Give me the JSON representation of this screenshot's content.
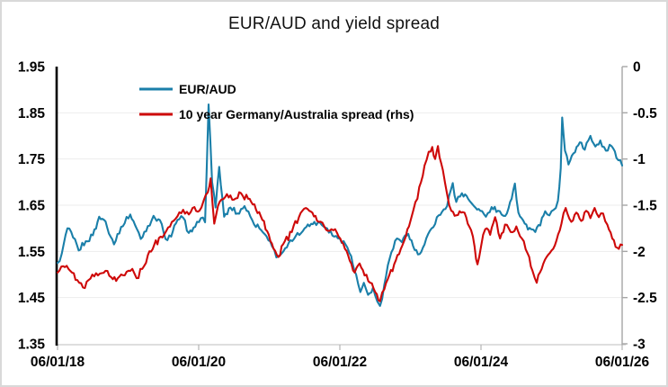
{
  "title": "EUR/AUD and yield spread",
  "legend": [
    {
      "label": "EUR/AUD",
      "color": "#1a7fa9",
      "series": "eur-aud"
    },
    {
      "label": "10 year Germany/Australia spread (rhs)",
      "color": "#ce0909",
      "series": "spread"
    }
  ],
  "colors": {
    "left_spine": "#000000",
    "right_spine": "#a6a6a6",
    "bottom_spine": "#c9c9c9",
    "tick": "#b3b3b3",
    "gridline": "#ededed",
    "frame_border": "#d9d9d9",
    "title_text": "#111111"
  },
  "chart_data": {
    "type": "line",
    "title": "EUR/AUD and yield spread",
    "grid": "horizontal",
    "legend_position": "inside-top-left",
    "x_axis": {
      "tick_labels": [
        "06/01/18",
        "06/01/20",
        "06/01/22",
        "06/01/24",
        "06/01/26"
      ],
      "tick_positions_years": [
        0,
        2,
        4,
        6,
        8
      ],
      "range_years": [
        0,
        8
      ]
    },
    "left_axis": {
      "label_for": "EUR/AUD",
      "ticks": [
        1.95,
        1.85,
        1.75,
        1.65,
        1.55,
        1.45,
        1.35
      ],
      "min": 1.35,
      "max": 1.95
    },
    "right_axis": {
      "label_for": "10 year Germany/Australia spread",
      "ticks": [
        0,
        -0.5,
        -1,
        -1.5,
        -2,
        -2.5,
        -3
      ],
      "min": -3,
      "max": 0
    },
    "series": [
      {
        "name": "EUR/AUD",
        "axis": "left",
        "color": "#1a7fa9",
        "line_width": 2.1,
        "noise_amplitude": 0.0075,
        "points": [
          [
            0.0,
            1.525
          ],
          [
            0.06,
            1.545
          ],
          [
            0.14,
            1.6
          ],
          [
            0.22,
            1.58
          ],
          [
            0.3,
            1.552
          ],
          [
            0.4,
            1.572
          ],
          [
            0.5,
            1.585
          ],
          [
            0.59,
            1.625
          ],
          [
            0.68,
            1.615
          ],
          [
            0.8,
            1.565
          ],
          [
            0.9,
            1.603
          ],
          [
            1.03,
            1.63
          ],
          [
            1.12,
            1.6
          ],
          [
            1.18,
            1.577
          ],
          [
            1.28,
            1.605
          ],
          [
            1.36,
            1.627
          ],
          [
            1.45,
            1.618
          ],
          [
            1.53,
            1.577
          ],
          [
            1.61,
            1.582
          ],
          [
            1.7,
            1.618
          ],
          [
            1.78,
            1.623
          ],
          [
            1.86,
            1.59
          ],
          [
            1.95,
            1.603
          ],
          [
            2.03,
            1.622
          ],
          [
            2.09,
            1.613
          ],
          [
            2.14,
            1.868
          ],
          [
            2.19,
            1.7
          ],
          [
            2.24,
            1.645
          ],
          [
            2.29,
            1.733
          ],
          [
            2.36,
            1.625
          ],
          [
            2.45,
            1.645
          ],
          [
            2.55,
            1.632
          ],
          [
            2.65,
            1.648
          ],
          [
            2.76,
            1.617
          ],
          [
            2.86,
            1.6
          ],
          [
            2.96,
            1.583
          ],
          [
            3.04,
            1.561
          ],
          [
            3.1,
            1.537
          ],
          [
            3.2,
            1.55
          ],
          [
            3.35,
            1.577
          ],
          [
            3.5,
            1.6
          ],
          [
            3.64,
            1.614
          ],
          [
            3.72,
            1.612
          ],
          [
            3.82,
            1.6
          ],
          [
            3.92,
            1.582
          ],
          [
            4.0,
            1.578
          ],
          [
            4.08,
            1.565
          ],
          [
            4.16,
            1.54
          ],
          [
            4.23,
            1.5
          ],
          [
            4.29,
            1.462
          ],
          [
            4.34,
            1.482
          ],
          [
            4.4,
            1.456
          ],
          [
            4.47,
            1.472
          ],
          [
            4.53,
            1.442
          ],
          [
            4.57,
            1.432
          ],
          [
            4.63,
            1.478
          ],
          [
            4.68,
            1.52
          ],
          [
            4.73,
            1.548
          ],
          [
            4.81,
            1.578
          ],
          [
            4.88,
            1.57
          ],
          [
            4.97,
            1.588
          ],
          [
            5.06,
            1.553
          ],
          [
            5.13,
            1.544
          ],
          [
            5.2,
            1.565
          ],
          [
            5.3,
            1.6
          ],
          [
            5.4,
            1.628
          ],
          [
            5.52,
            1.648
          ],
          [
            5.6,
            1.698
          ],
          [
            5.65,
            1.657
          ],
          [
            5.73,
            1.676
          ],
          [
            5.82,
            1.663
          ],
          [
            5.9,
            1.648
          ],
          [
            5.99,
            1.638
          ],
          [
            6.07,
            1.625
          ],
          [
            6.15,
            1.646
          ],
          [
            6.24,
            1.638
          ],
          [
            6.32,
            1.627
          ],
          [
            6.39,
            1.643
          ],
          [
            6.48,
            1.697
          ],
          [
            6.53,
            1.634
          ],
          [
            6.62,
            1.61
          ],
          [
            6.71,
            1.598
          ],
          [
            6.77,
            1.592
          ],
          [
            6.84,
            1.606
          ],
          [
            6.91,
            1.637
          ],
          [
            6.97,
            1.628
          ],
          [
            7.03,
            1.64
          ],
          [
            7.09,
            1.66
          ],
          [
            7.13,
            1.73
          ],
          [
            7.15,
            1.84
          ],
          [
            7.19,
            1.768
          ],
          [
            7.24,
            1.738
          ],
          [
            7.31,
            1.762
          ],
          [
            7.4,
            1.786
          ],
          [
            7.47,
            1.77
          ],
          [
            7.55,
            1.8
          ],
          [
            7.62,
            1.777
          ],
          [
            7.69,
            1.79
          ],
          [
            7.77,
            1.768
          ],
          [
            7.85,
            1.778
          ],
          [
            7.92,
            1.752
          ],
          [
            8.0,
            1.736
          ]
        ]
      },
      {
        "name": "10 year Germany/Australia spread (rhs)",
        "axis": "right",
        "color": "#ce0909",
        "line_width": 2.1,
        "noise_amplitude": 0.04,
        "points": [
          [
            0.0,
            -2.23
          ],
          [
            0.08,
            -2.16
          ],
          [
            0.18,
            -2.21
          ],
          [
            0.28,
            -2.31
          ],
          [
            0.36,
            -2.39
          ],
          [
            0.44,
            -2.31
          ],
          [
            0.52,
            -2.27
          ],
          [
            0.6,
            -2.24
          ],
          [
            0.68,
            -2.21
          ],
          [
            0.76,
            -2.28
          ],
          [
            0.83,
            -2.32
          ],
          [
            0.9,
            -2.25
          ],
          [
            0.98,
            -2.22
          ],
          [
            1.06,
            -2.19
          ],
          [
            1.12,
            -2.29
          ],
          [
            1.2,
            -2.19
          ],
          [
            1.28,
            -2.04
          ],
          [
            1.37,
            -1.93
          ],
          [
            1.46,
            -1.84
          ],
          [
            1.54,
            -1.78
          ],
          [
            1.62,
            -1.68
          ],
          [
            1.7,
            -1.62
          ],
          [
            1.78,
            -1.55
          ],
          [
            1.86,
            -1.6
          ],
          [
            1.94,
            -1.52
          ],
          [
            2.01,
            -1.56
          ],
          [
            2.07,
            -1.45
          ],
          [
            2.13,
            -1.36
          ],
          [
            2.17,
            -1.21
          ],
          [
            2.22,
            -1.7
          ],
          [
            2.3,
            -1.46
          ],
          [
            2.4,
            -1.38
          ],
          [
            2.5,
            -1.44
          ],
          [
            2.6,
            -1.37
          ],
          [
            2.7,
            -1.43
          ],
          [
            2.79,
            -1.49
          ],
          [
            2.88,
            -1.62
          ],
          [
            2.97,
            -1.78
          ],
          [
            3.06,
            -1.97
          ],
          [
            3.13,
            -2.06
          ],
          [
            3.22,
            -1.89
          ],
          [
            3.32,
            -1.79
          ],
          [
            3.42,
            -1.63
          ],
          [
            3.52,
            -1.53
          ],
          [
            3.61,
            -1.58
          ],
          [
            3.7,
            -1.68
          ],
          [
            3.78,
            -1.73
          ],
          [
            3.88,
            -1.76
          ],
          [
            3.96,
            -1.8
          ],
          [
            4.05,
            -1.92
          ],
          [
            4.14,
            -2.1
          ],
          [
            4.21,
            -2.23
          ],
          [
            4.28,
            -2.13
          ],
          [
            4.35,
            -2.26
          ],
          [
            4.43,
            -2.34
          ],
          [
            4.5,
            -2.44
          ],
          [
            4.57,
            -2.54
          ],
          [
            4.63,
            -2.41
          ],
          [
            4.7,
            -2.26
          ],
          [
            4.77,
            -2.14
          ],
          [
            4.84,
            -2.03
          ],
          [
            4.91,
            -1.89
          ],
          [
            4.98,
            -1.73
          ],
          [
            5.04,
            -1.56
          ],
          [
            5.1,
            -1.43
          ],
          [
            5.15,
            -1.25
          ],
          [
            5.2,
            -1.07
          ],
          [
            5.26,
            -0.92
          ],
          [
            5.31,
            -0.87
          ],
          [
            5.35,
            -1.0
          ],
          [
            5.39,
            -0.86
          ],
          [
            5.46,
            -1.12
          ],
          [
            5.52,
            -1.38
          ],
          [
            5.58,
            -1.56
          ],
          [
            5.65,
            -1.61
          ],
          [
            5.72,
            -1.58
          ],
          [
            5.79,
            -1.63
          ],
          [
            5.86,
            -1.77
          ],
          [
            5.91,
            -1.95
          ],
          [
            5.95,
            -2.14
          ],
          [
            6.0,
            -1.95
          ],
          [
            6.06,
            -1.76
          ],
          [
            6.13,
            -1.82
          ],
          [
            6.2,
            -1.63
          ],
          [
            6.27,
            -1.86
          ],
          [
            6.34,
            -1.71
          ],
          [
            6.42,
            -1.79
          ],
          [
            6.5,
            -1.73
          ],
          [
            6.58,
            -1.86
          ],
          [
            6.66,
            -2.02
          ],
          [
            6.73,
            -2.21
          ],
          [
            6.79,
            -2.34
          ],
          [
            6.86,
            -2.19
          ],
          [
            6.93,
            -2.06
          ],
          [
            7.0,
            -1.99
          ],
          [
            7.07,
            -1.88
          ],
          [
            7.14,
            -1.7
          ],
          [
            7.2,
            -1.53
          ],
          [
            7.28,
            -1.68
          ],
          [
            7.35,
            -1.58
          ],
          [
            7.42,
            -1.67
          ],
          [
            7.49,
            -1.56
          ],
          [
            7.55,
            -1.64
          ],
          [
            7.61,
            -1.53
          ],
          [
            7.67,
            -1.63
          ],
          [
            7.73,
            -1.59
          ],
          [
            7.79,
            -1.71
          ],
          [
            7.86,
            -1.86
          ],
          [
            7.93,
            -1.96
          ],
          [
            8.0,
            -1.93
          ]
        ]
      }
    ]
  }
}
